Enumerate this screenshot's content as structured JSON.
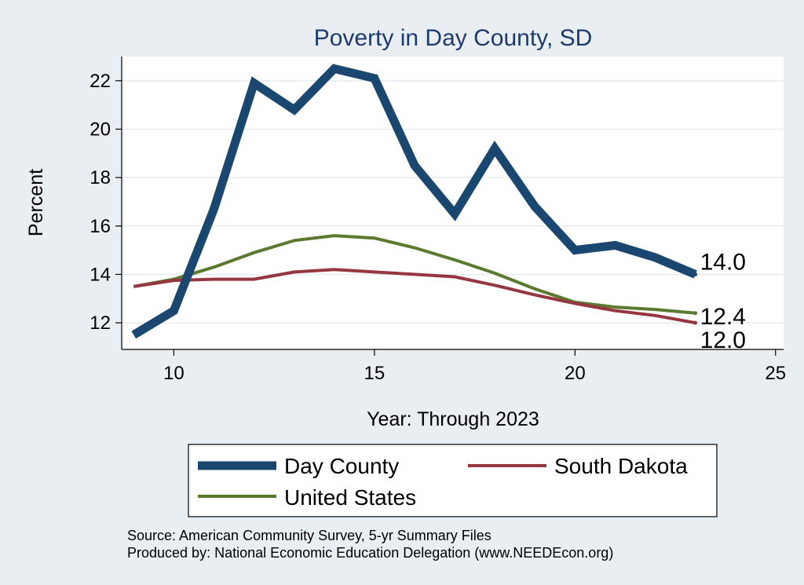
{
  "chart_data": {
    "type": "line",
    "title": "Poverty in Day County, SD",
    "xlabel": "Year: Through 2023",
    "ylabel": "Percent",
    "xlim": [
      8.7,
      25.2
    ],
    "ylim": [
      10.9,
      23.0
    ],
    "xticks": [
      10,
      15,
      20,
      25
    ],
    "yticks": [
      12,
      14,
      16,
      18,
      20,
      22
    ],
    "grid": true,
    "legend_position": "bottom",
    "series": [
      {
        "name": "Day County",
        "color": "#1a4770",
        "x": [
          9,
          10,
          11,
          12,
          13,
          14,
          15,
          16,
          17,
          18,
          19,
          20,
          21,
          22,
          23
        ],
        "y": [
          11.5,
          12.5,
          16.7,
          21.9,
          20.8,
          22.5,
          22.1,
          18.5,
          16.5,
          19.2,
          16.8,
          15.0,
          15.2,
          14.7,
          14.0
        ],
        "end_label": "14.0"
      },
      {
        "name": "South Dakota",
        "color": "#953640",
        "x": [
          9,
          10,
          11,
          12,
          13,
          14,
          15,
          16,
          17,
          18,
          19,
          20,
          21,
          22,
          23
        ],
        "y": [
          13.5,
          13.75,
          13.8,
          13.8,
          14.1,
          14.2,
          14.1,
          14.0,
          13.9,
          13.55,
          13.15,
          12.8,
          12.5,
          12.3,
          12.0
        ],
        "end_label": "12.0"
      },
      {
        "name": "United States",
        "color": "#5b7a30",
        "x": [
          9,
          10,
          11,
          12,
          13,
          14,
          15,
          16,
          17,
          18,
          19,
          20,
          21,
          22,
          23
        ],
        "y": [
          13.5,
          13.8,
          14.3,
          14.9,
          15.4,
          15.6,
          15.5,
          15.1,
          14.6,
          14.05,
          13.4,
          12.85,
          12.65,
          12.55,
          12.4
        ],
        "end_label": "12.4"
      }
    ]
  },
  "notes": {
    "source": "Source: American Community Survey, 5-yr Summary Files",
    "produced": "Produced by: National Economic Education Delegation (www.NEEDEcon.org)"
  }
}
